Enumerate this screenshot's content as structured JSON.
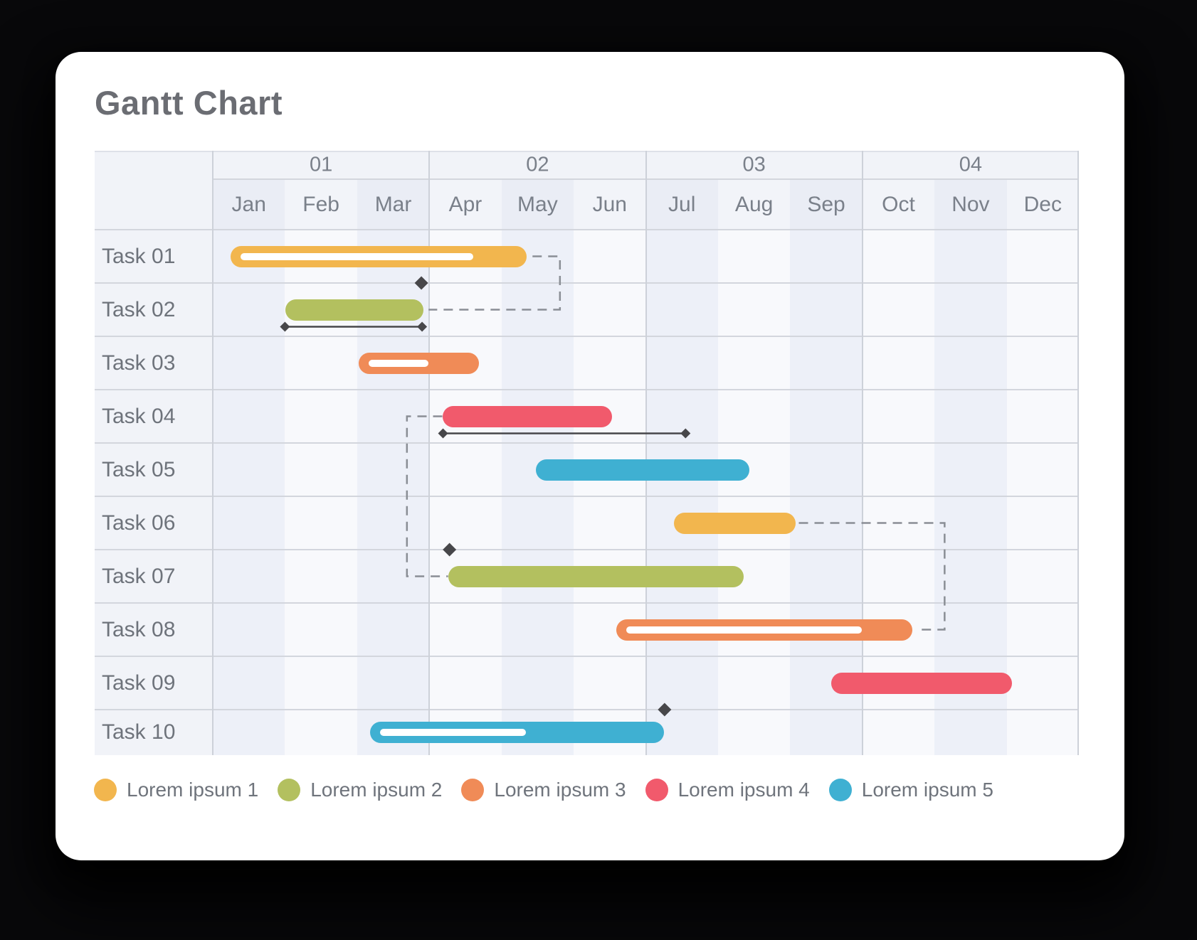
{
  "header": {
    "title": "Gantt Chart"
  },
  "colors": {
    "yellow": "#F2B64E",
    "green": "#B3C05F",
    "orange": "#F08B57",
    "red": "#F15A6C",
    "blue": "#3FB0D2",
    "marker": "#47474A",
    "connector": "#8A8E95",
    "grid": "#D3D6DD",
    "vline": "#CDD1D9",
    "top_edge": "#DEE1E8",
    "label_col_bg": "#F1F3F8",
    "body_shaded_col": "#EDF0F8",
    "body_plain_col": "#F8F9FC",
    "header_quarter_bg": "#F1F3F8",
    "header_month_shaded": "#EAEDF5",
    "header_month_plain": "#F2F4F9",
    "task_text": "#6E737B",
    "header_text": "#7A808A",
    "title_text": "#6B6D73"
  },
  "legend": [
    {
      "label": "Lorem ipsum 1",
      "color_key": "yellow"
    },
    {
      "label": "Lorem ipsum 2",
      "color_key": "green"
    },
    {
      "label": "Lorem ipsum 3",
      "color_key": "orange"
    },
    {
      "label": "Lorem ipsum 4",
      "color_key": "red"
    },
    {
      "label": "Lorem ipsum 5",
      "color_key": "blue"
    }
  ],
  "chart_data": {
    "type": "gantt",
    "title": "Gantt Chart",
    "x_axis": {
      "quarters": [
        "01",
        "02",
        "03",
        "04"
      ],
      "months": [
        "Jan",
        "Feb",
        "Mar",
        "Apr",
        "May",
        "Jun",
        "Jul",
        "Aug",
        "Sep",
        "Oct",
        "Nov",
        "Dec"
      ],
      "shaded_months": [
        "Jan",
        "Mar",
        "May",
        "Jul",
        "Sep",
        "Nov"
      ]
    },
    "tasks": [
      {
        "label": "Task 01",
        "color_key": "yellow",
        "start_month": 0.25,
        "end_month": 4.35,
        "progress": 0.82
      },
      {
        "label": "Task 02",
        "color_key": "green",
        "start_month": 1.01,
        "end_month": 2.92,
        "progress": null,
        "duration_line": {
          "start_month": 1.0,
          "end_month": 2.9
        }
      },
      {
        "label": "Task 03",
        "color_key": "orange",
        "start_month": 2.02,
        "end_month": 3.69,
        "progress": 0.58
      },
      {
        "label": "Task 04",
        "color_key": "red",
        "start_month": 3.18,
        "end_month": 5.53,
        "progress": null,
        "duration_line": {
          "start_month": 3.19,
          "end_month": 6.55
        }
      },
      {
        "label": "Task 05",
        "color_key": "blue",
        "start_month": 4.48,
        "end_month": 7.43,
        "progress": null
      },
      {
        "label": "Task 06",
        "color_key": "yellow",
        "start_month": 6.39,
        "end_month": 8.08,
        "progress": null
      },
      {
        "label": "Task 07",
        "color_key": "green",
        "start_month": 3.26,
        "end_month": 7.36,
        "progress": null
      },
      {
        "label": "Task 08",
        "color_key": "orange",
        "start_month": 5.59,
        "end_month": 9.69,
        "progress": 0.83
      },
      {
        "label": "Task 09",
        "color_key": "red",
        "start_month": 8.57,
        "end_month": 11.07,
        "progress": null
      },
      {
        "label": "Task 10",
        "color_key": "blue",
        "start_month": 2.18,
        "end_month": 6.25,
        "progress": 0.53
      }
    ],
    "milestones": [
      {
        "month": 2.89,
        "row_boundary_above_task_index": 1
      },
      {
        "month": 3.28,
        "row_boundary_above_task_index": 6
      },
      {
        "month": 6.26,
        "row_boundary_above_task_index": 9
      }
    ],
    "dependencies": [
      {
        "from_task": 0,
        "to_task": 1,
        "points": [
          {
            "m": 4.43,
            "row": 0
          },
          {
            "m": 4.81,
            "row": 0
          },
          {
            "m": 4.81,
            "row": 1
          },
          {
            "m": 2.99,
            "row": 1
          }
        ]
      },
      {
        "from_task": 3,
        "to_task": 6,
        "points": [
          {
            "m": 3.18,
            "row": 3
          },
          {
            "m": 2.69,
            "row": 3
          },
          {
            "m": 2.69,
            "row": 6
          },
          {
            "m": 3.26,
            "row": 6
          }
        ]
      },
      {
        "from_task": 5,
        "to_task": 7,
        "points": [
          {
            "m": 8.12,
            "row": 5
          },
          {
            "m": 10.14,
            "row": 5
          },
          {
            "m": 10.14,
            "row": 7
          },
          {
            "m": 9.75,
            "row": 7
          }
        ]
      }
    ]
  }
}
